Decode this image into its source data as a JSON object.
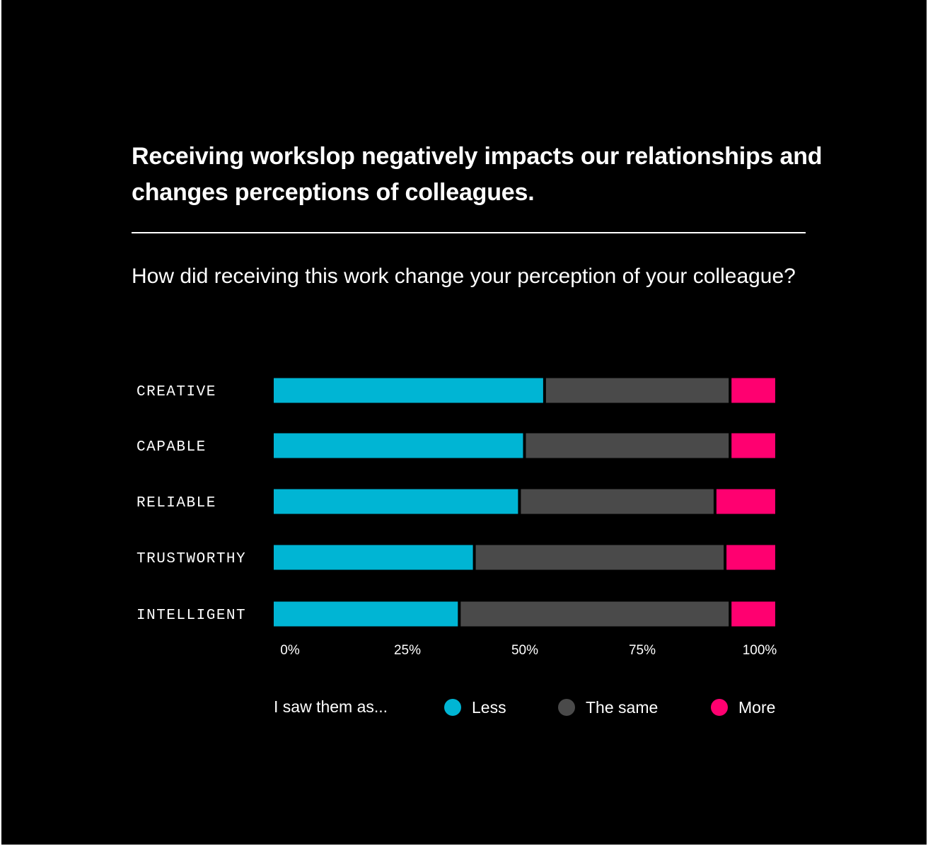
{
  "title": "Receiving workslop negatively impacts our relationships and changes perceptions of colleagues.",
  "subtitle": "How did receiving this work change your perception of your colleague?",
  "colors": {
    "background": "#000000",
    "less": "#00b5d4",
    "same": "#4a4a4a",
    "more": "#ff0070",
    "text": "#ffffff"
  },
  "legend": {
    "title": "I saw them as...",
    "items": [
      {
        "label": "Less",
        "color": "#00b5d4"
      },
      {
        "label": "The same",
        "color": "#4a4a4a"
      },
      {
        "label": "More",
        "color": "#ff0070"
      }
    ]
  },
  "chart_data": {
    "type": "bar",
    "orientation": "horizontal",
    "stacked": true,
    "title": "How did receiving this work change your perception of your colleague?",
    "categories": [
      "CREATIVE",
      "CAPABLE",
      "RELIABLE",
      "TRUSTWORTHY",
      "INTELLIGENT"
    ],
    "series": [
      {
        "name": "Less",
        "values": [
          54,
          50,
          49,
          40,
          37
        ]
      },
      {
        "name": "The same",
        "values": [
          37,
          41,
          39,
          50,
          54
        ]
      },
      {
        "name": "More",
        "values": [
          9,
          9,
          12,
          10,
          9
        ]
      }
    ],
    "xlim": [
      0,
      100
    ],
    "xticks": [
      "0%",
      "25%",
      "50%",
      "75%",
      "100%"
    ],
    "xlabel": "",
    "ylabel": "",
    "grid": false,
    "legend_position": "bottom"
  }
}
